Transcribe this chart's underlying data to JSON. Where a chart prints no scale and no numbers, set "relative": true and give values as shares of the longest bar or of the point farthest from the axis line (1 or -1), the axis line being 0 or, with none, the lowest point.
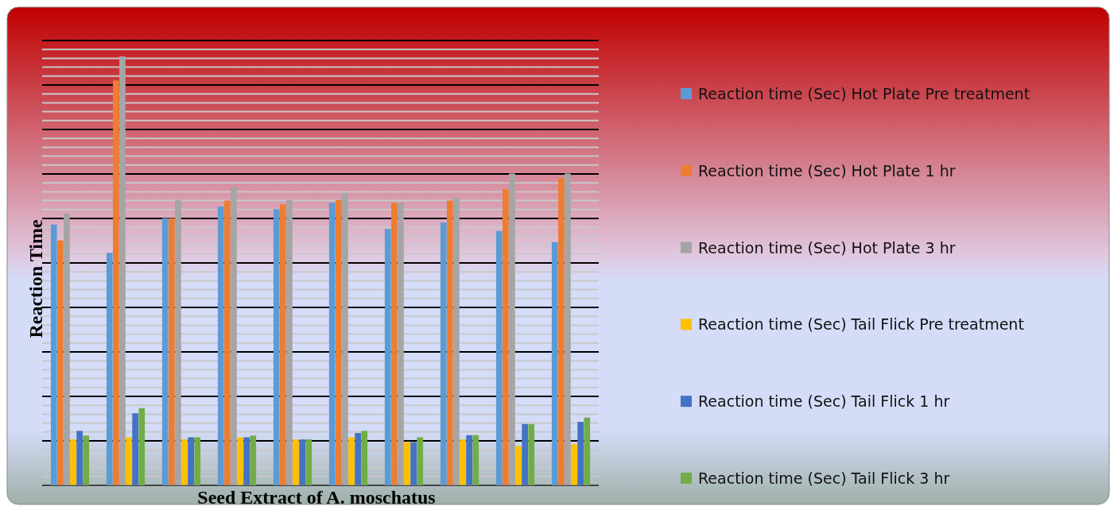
{
  "chart_data": {
    "type": "bar",
    "relative": true,
    "xlabel": "Seed Extract of A. moschatus",
    "ylabel": "Reaction Time",
    "categories": [
      null,
      null,
      null,
      null,
      null,
      null,
      null,
      null,
      null,
      null
    ],
    "grid": true,
    "legend": "right",
    "series": [
      {
        "name": "Reaction time (Sec) Hot Plate Pre treatment",
        "color": "#5b9bd5",
        "values": [
          0.608,
          0.542,
          0.623,
          0.65,
          0.644,
          0.659,
          0.598,
          0.613,
          0.593,
          0.567
        ]
      },
      {
        "name": "Reaction time (Sec) Hot Plate 1 hr",
        "color": "#ed7d31",
        "values": [
          0.571,
          0.944,
          0.623,
          0.664,
          0.655,
          0.665,
          0.659,
          0.664,
          0.69,
          0.716
        ]
      },
      {
        "name": "Reaction time (Sec) Hot Plate 3 hr",
        "color": "#a5a5a5",
        "values": [
          0.634,
          1,
          0.665,
          0.696,
          0.665,
          0.681,
          0.659,
          0.67,
          0.727,
          0.727
        ]
      },
      {
        "name": "Reaction time (Sec) Tail Flick Pre treatment",
        "color": "#ffc000",
        "values": [
          0.107,
          0.112,
          0.107,
          0.112,
          0.107,
          0.112,
          0.101,
          0.107,
          0.091,
          0.096
        ]
      },
      {
        "name": "Reaction time (Sec) Tail Flick 1 hr",
        "color": "#4472c4",
        "values": [
          0.127,
          0.168,
          0.112,
          0.112,
          0.107,
          0.122,
          0.101,
          0.117,
          0.143,
          0.148
        ]
      },
      {
        "name": "Reaction time (Sec) Tail Flick 3 hr",
        "color": "#70ad47",
        "values": [
          0.116,
          0.18,
          0.112,
          0.116,
          0.107,
          0.127,
          0.112,
          0.117,
          0.143,
          0.158
        ]
      }
    ]
  }
}
